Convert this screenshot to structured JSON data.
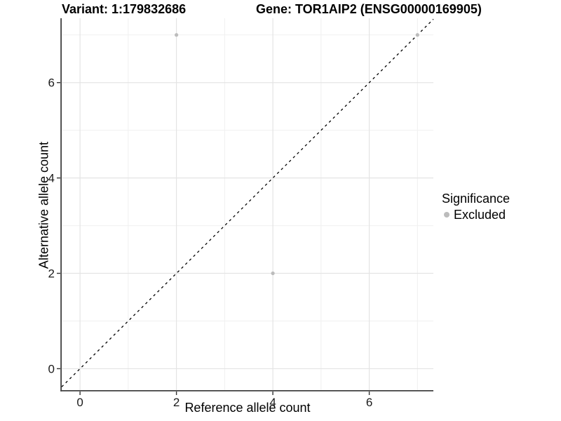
{
  "titles": {
    "left": "Variant: 1:179832686",
    "right": "Gene: TOR1AIP2 (ENSG00000169905)"
  },
  "chart_data": {
    "type": "scatter",
    "title": "Variant: 1:179832686  /  Gene: TOR1AIP2 (ENSG00000169905)",
    "xlabel": "Reference allele count",
    "ylabel": "Alternative allele count",
    "xlim": [
      -0.38,
      7.33
    ],
    "ylim": [
      -0.45,
      7.35
    ],
    "x_ticks": [
      0,
      2,
      4,
      6
    ],
    "y_ticks": [
      0,
      2,
      4,
      6
    ],
    "x_minor_ticks": [
      1,
      3,
      5,
      7
    ],
    "y_minor_ticks": [
      1,
      3,
      5,
      7
    ],
    "grid": "on",
    "series": [
      {
        "name": "Excluded",
        "points": [
          {
            "x": 2,
            "y": 7
          },
          {
            "x": 4,
            "y": 2
          },
          {
            "x": 7,
            "y": 7
          }
        ]
      }
    ],
    "reference_line": {
      "type": "diagonal y=x",
      "slope": 1,
      "intercept": 0,
      "style": "dashed",
      "color": "#000000"
    },
    "legend": {
      "title": "Significance",
      "position": "right",
      "items": [
        {
          "label": "Excluded",
          "color": "#bcbcbc"
        }
      ]
    }
  },
  "colors": {
    "point": "#bcbcbc",
    "grid_major": "#e4e4e4",
    "grid_minor": "#f0f0f0",
    "axis_line": "#404040",
    "tick_mark": "#333333",
    "tick_label": "#1a1a1a",
    "background": "#ffffff"
  }
}
